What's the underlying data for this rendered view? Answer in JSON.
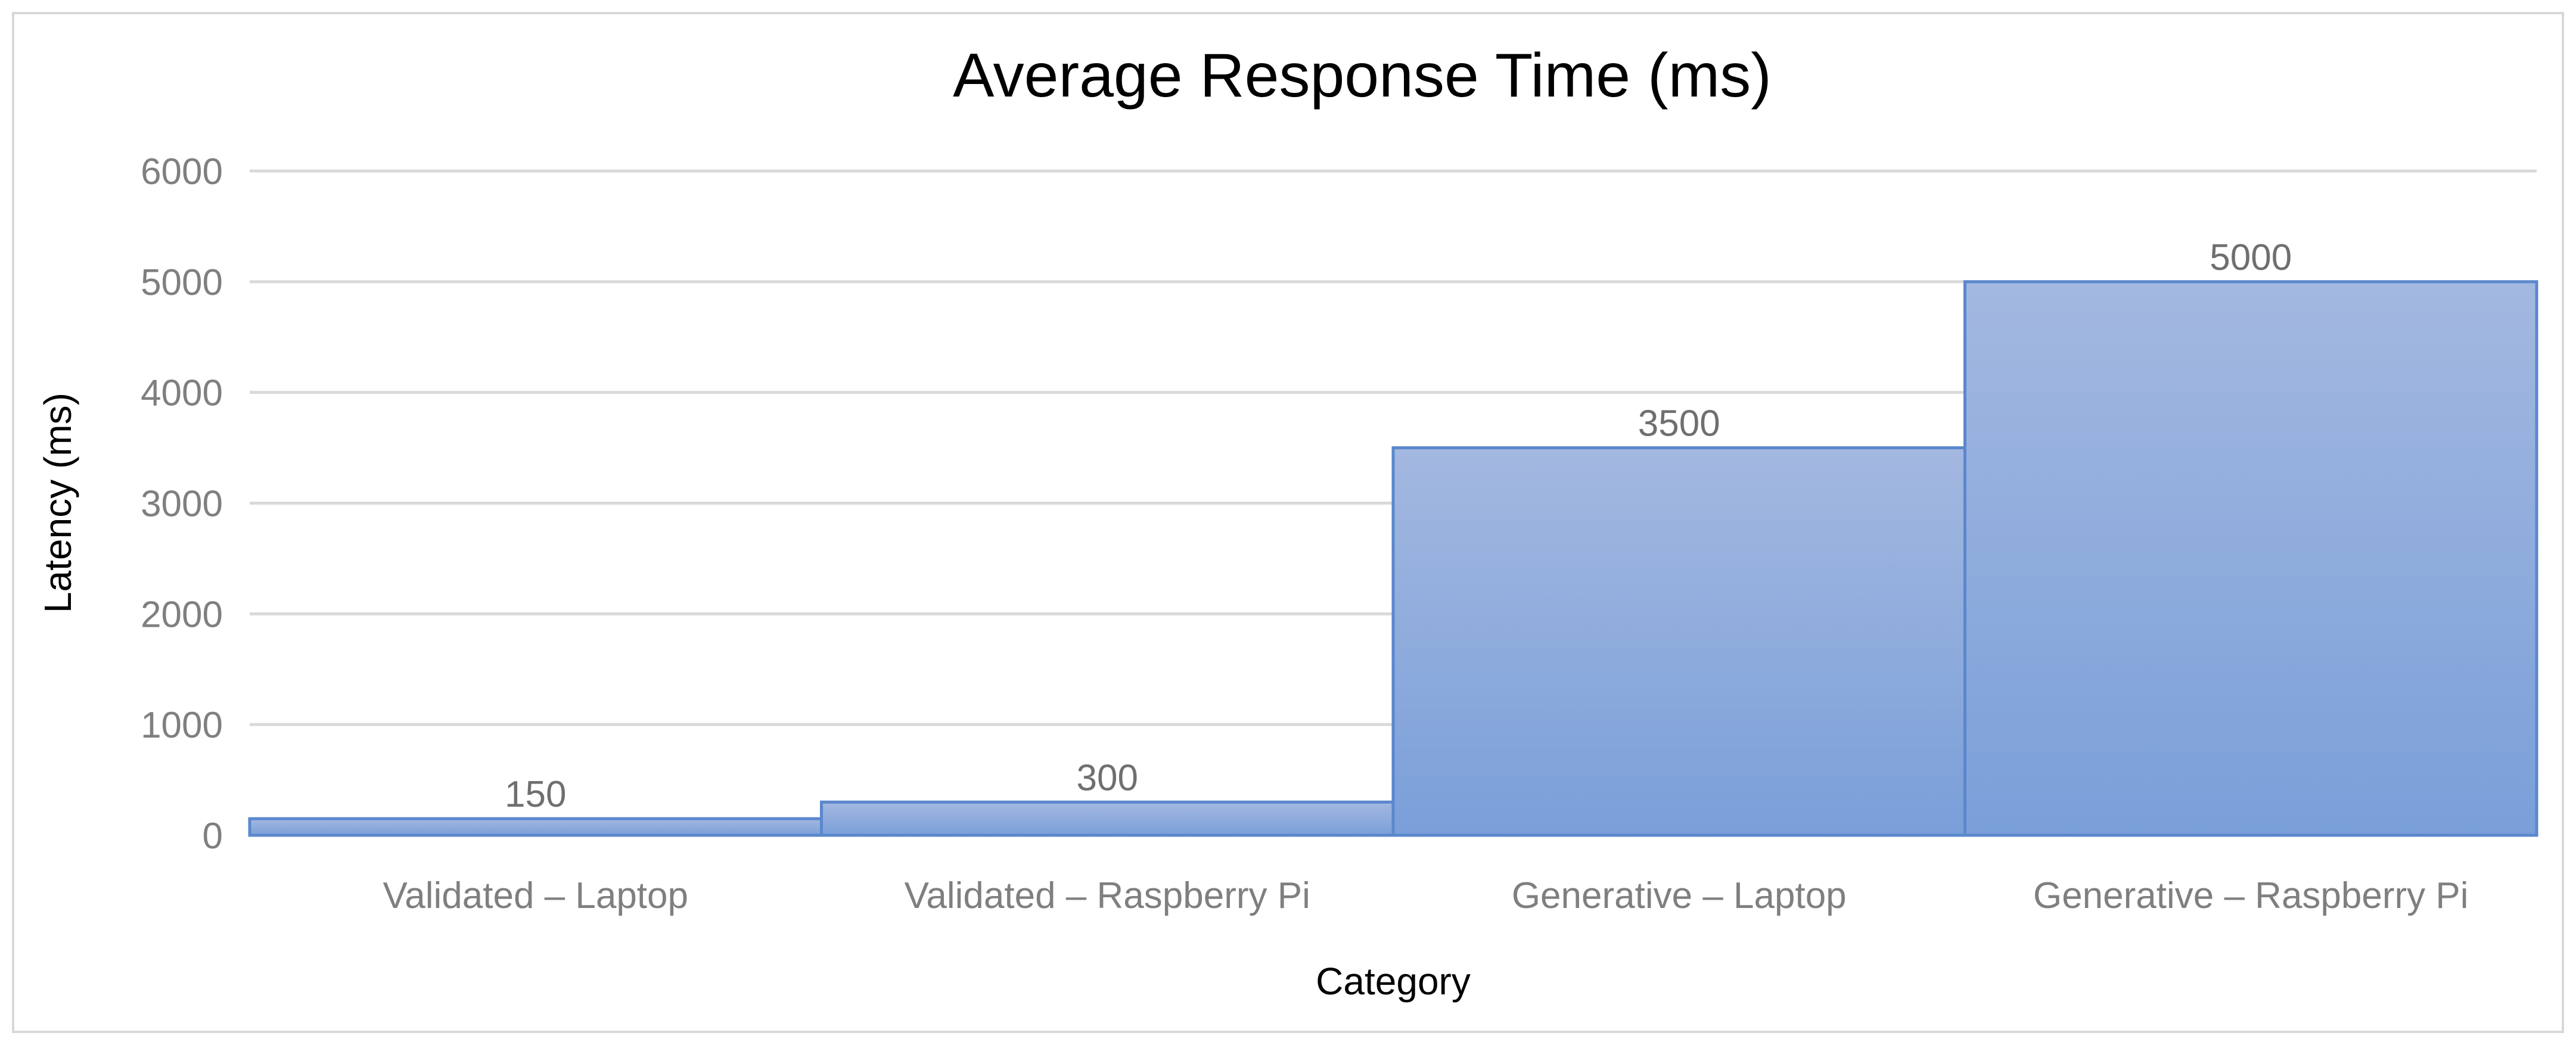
{
  "chart_data": {
    "type": "bar",
    "title": "Average Response Time (ms)",
    "xlabel": "Category",
    "ylabel": "Latency (ms)",
    "categories": [
      "Validated – Laptop",
      "Validated – Raspberry Pi",
      "Generative – Laptop",
      "Generative – Raspberry Pi"
    ],
    "values": [
      150,
      300,
      3500,
      5000
    ],
    "data_labels": [
      "150",
      "300",
      "3500",
      "5000"
    ],
    "y_ticks": [
      0,
      1000,
      2000,
      3000,
      4000,
      5000,
      6000
    ],
    "ylim": [
      0,
      6000
    ],
    "grid": true,
    "legend": "none",
    "colors": {
      "bar_top": "#a3b8e0",
      "bar_bottom": "#7a9fd9",
      "bar_edge": "#5b87cc",
      "grid": "#d9d9d9",
      "tick_text": "#7f7f7f"
    }
  }
}
